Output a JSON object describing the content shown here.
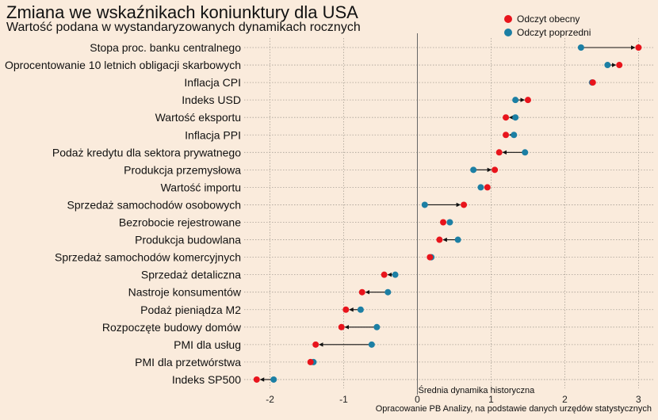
{
  "title": "Zmiana we wskaźnikach koniunktury dla USA",
  "subtitle": "Wartość podana w wystandaryzowanych dynamikach rocznych",
  "caption": "Opracowanie  PB Analizy, na podstawie danych urzędów statystycznych",
  "colors": {
    "background": "#faebdc",
    "current": "#e8141c",
    "previous": "#1c7fa4",
    "arrow": "#111111",
    "grid": "#a8a095",
    "zero_line": "#666666"
  },
  "chart_data": {
    "type": "dumbbell",
    "title": "Zmiana we wskaźnikach koniunktury dla USA",
    "subtitle": "Wartość podana w wystandaryzowanych dynamikach rocznych",
    "xlabel": "",
    "ylabel": "",
    "xlim": [
      -2.35,
      3.2
    ],
    "x_ticks": [
      -2,
      -1,
      0,
      1,
      2,
      3
    ],
    "grid": true,
    "legend_position": "top-right",
    "reference_line": {
      "x": 0,
      "label": "Średnia dynamika historyczna"
    },
    "series": [
      {
        "name": "Odczyt obecny",
        "key": "current"
      },
      {
        "name": "Odczyt poprzedni",
        "key": "previous"
      }
    ],
    "categories": [
      "Stopa proc. banku centralnego",
      "Oprocentowanie 10 letnich obligacji skarbowych",
      "Inflacja CPI",
      "Indeks USD",
      "Wartość eksportu",
      "Inflacja PPI",
      "Podaż kredytu dla sektora prywatnego",
      "Produkcja przemysłowa",
      "Wartość importu",
      "Sprzedaż samochodów osobowych",
      "Bezrobocie rejestrowane",
      "Produkcja budowlana",
      "Sprzedaż samochodów komercyjnych",
      "Sprzedaż detaliczna",
      "Nastroje konsumentów",
      "Podaż pieniądza M2",
      "Rozpoczęte budowy domów",
      "PMI dla usług",
      "PMI dla przetwórstwa",
      "Indeks SP500"
    ],
    "current": [
      3.0,
      2.74,
      2.38,
      1.5,
      1.2,
      1.2,
      1.11,
      1.05,
      0.95,
      0.63,
      0.35,
      0.3,
      0.17,
      -0.45,
      -0.75,
      -0.97,
      -1.03,
      -1.38,
      -1.45,
      -2.18
    ],
    "previous": [
      2.22,
      2.58,
      2.37,
      1.33,
      1.33,
      1.31,
      1.46,
      0.76,
      0.86,
      0.1,
      0.44,
      0.55,
      0.19,
      -0.3,
      -0.4,
      -0.77,
      -0.55,
      -0.62,
      -1.41,
      -1.95
    ]
  }
}
